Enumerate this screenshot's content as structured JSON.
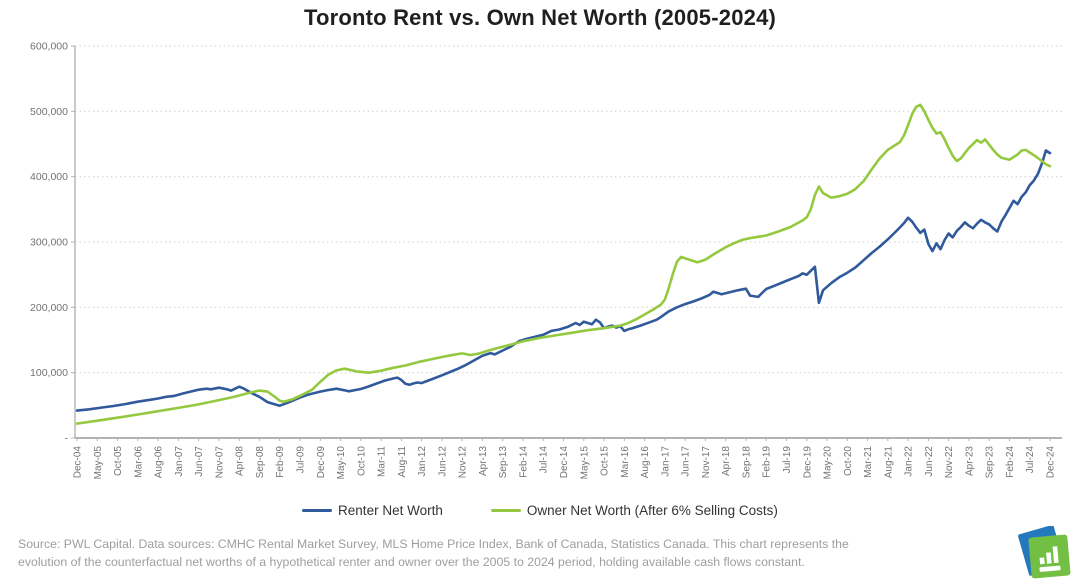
{
  "title": "Toronto Rent vs. Own Net Worth (2005-2024)",
  "footer": {
    "line1": "Source: PWL Capital. Data sources: CMHC Rental Market Survey, MLS Home Price Index, Bank of Canada, Statistics Canada. This chart represents the",
    "line2": "evolution of the counterfactual net worths of a hypothetical renter and owner over the 2005 to 2024 period, holding available cash flows constant."
  },
  "logo": {
    "name": "PWL Capital logo mark",
    "colors": {
      "blue": "#2478bd",
      "green": "#72bf44",
      "bars": "#ffffff"
    }
  },
  "chart_data": {
    "type": "line",
    "title": "Toronto Rent vs. Own Net Worth (2005-2024)",
    "grid": "horizontal dotted gridlines, white background",
    "legend_position": "bottom center",
    "x_axis": {
      "unit": "month (Dec-04 = 0)",
      "months_per_tick": 5,
      "total_months": 240,
      "tick_labels": [
        "Dec-04",
        "May-05",
        "Oct-05",
        "Mar-06",
        "Aug-06",
        "Jan-07",
        "Jun-07",
        "Nov-07",
        "Apr-08",
        "Sep-08",
        "Feb-09",
        "Jul-09",
        "Dec-09",
        "May-10",
        "Oct-10",
        "Mar-11",
        "Aug-11",
        "Jan-12",
        "Jun-12",
        "Nov-12",
        "Apr-13",
        "Sep-13",
        "Feb-14",
        "Jul-14",
        "Dec-14",
        "May-15",
        "Oct-15",
        "Mar-16",
        "Aug-16",
        "Jan-17",
        "Jun-17",
        "Nov-17",
        "Apr-18",
        "Sep-18",
        "Feb-19",
        "Jul-19",
        "Dec-19",
        "May-20",
        "Oct-20",
        "Mar-21",
        "Aug-21",
        "Jan-22",
        "Jun-22",
        "Nov-22",
        "Apr-23",
        "Sep-23",
        "Feb-24",
        "Jul-24",
        "Dec-24"
      ]
    },
    "y_axis": {
      "min": 0,
      "max": 600000,
      "ticks": [
        {
          "value": 600000,
          "label": "600,000"
        },
        {
          "value": 500000,
          "label": "500,000"
        },
        {
          "value": 400000,
          "label": "400,000"
        },
        {
          "value": 300000,
          "label": "300,000"
        },
        {
          "value": 200000,
          "label": "200,000"
        },
        {
          "value": 100000,
          "label": "100,000"
        },
        {
          "value": 0,
          "label": "-"
        }
      ]
    },
    "series": [
      {
        "name": "Renter Net Worth",
        "color": "#305a9c",
        "points": [
          [
            0,
            42000
          ],
          [
            3,
            44000
          ],
          [
            6,
            46500
          ],
          [
            9,
            49000
          ],
          [
            12,
            52000
          ],
          [
            15,
            55500
          ],
          [
            18,
            58500
          ],
          [
            20,
            60500
          ],
          [
            22,
            63000
          ],
          [
            24,
            64500
          ],
          [
            26,
            68000
          ],
          [
            28,
            71000
          ],
          [
            30,
            74000
          ],
          [
            32,
            75500
          ],
          [
            33,
            74500
          ],
          [
            35,
            77000
          ],
          [
            37,
            74500
          ],
          [
            38,
            72500
          ],
          [
            40,
            78500
          ],
          [
            41,
            76000
          ],
          [
            43,
            69000
          ],
          [
            45,
            63000
          ],
          [
            47,
            55000
          ],
          [
            50,
            49500
          ],
          [
            52,
            54000
          ],
          [
            55,
            62000
          ],
          [
            57,
            66500
          ],
          [
            60,
            71000
          ],
          [
            62,
            73500
          ],
          [
            64,
            75500
          ],
          [
            66,
            73000
          ],
          [
            67,
            71500
          ],
          [
            70,
            75000
          ],
          [
            72,
            79000
          ],
          [
            74,
            83500
          ],
          [
            76,
            88000
          ],
          [
            78,
            91000
          ],
          [
            79,
            92500
          ],
          [
            80,
            89000
          ],
          [
            81,
            83000
          ],
          [
            82,
            81500
          ],
          [
            83,
            83500
          ],
          [
            84,
            85000
          ],
          [
            85,
            84000
          ],
          [
            86,
            86500
          ],
          [
            88,
            91000
          ],
          [
            90,
            96000
          ],
          [
            92,
            101000
          ],
          [
            94,
            106000
          ],
          [
            96,
            112000
          ],
          [
            98,
            119000
          ],
          [
            100,
            126000
          ],
          [
            102,
            130000
          ],
          [
            103,
            128000
          ],
          [
            105,
            134000
          ],
          [
            107,
            140000
          ],
          [
            109,
            148000
          ],
          [
            111,
            152000
          ],
          [
            113,
            155000
          ],
          [
            115,
            158000
          ],
          [
            117,
            164000
          ],
          [
            119,
            166000
          ],
          [
            121,
            170000
          ],
          [
            123,
            176000
          ],
          [
            124,
            173000
          ],
          [
            125,
            178000
          ],
          [
            127,
            174000
          ],
          [
            128,
            181000
          ],
          [
            129,
            177000
          ],
          [
            130,
            168000
          ],
          [
            131,
            170500
          ],
          [
            132,
            172000
          ],
          [
            133,
            169000
          ],
          [
            134,
            171000
          ],
          [
            135,
            164000
          ],
          [
            136,
            166500
          ],
          [
            137,
            168000
          ],
          [
            139,
            172000
          ],
          [
            141,
            176500
          ],
          [
            143,
            181000
          ],
          [
            144,
            185000
          ],
          [
            146,
            194000
          ],
          [
            148,
            200000
          ],
          [
            150,
            205000
          ],
          [
            152,
            209000
          ],
          [
            154,
            213500
          ],
          [
            156,
            219000
          ],
          [
            157,
            224000
          ],
          [
            159,
            220000
          ],
          [
            161,
            223000
          ],
          [
            163,
            226000
          ],
          [
            165,
            228500
          ],
          [
            166,
            218000
          ],
          [
            168,
            216000
          ],
          [
            170,
            228000
          ],
          [
            172,
            233000
          ],
          [
            174,
            238000
          ],
          [
            176,
            243000
          ],
          [
            178,
            248000
          ],
          [
            179,
            252000
          ],
          [
            180,
            250000
          ],
          [
            182,
            262000
          ],
          [
            183,
            207000
          ],
          [
            184,
            226000
          ],
          [
            186,
            237000
          ],
          [
            188,
            246000
          ],
          [
            190,
            253000
          ],
          [
            192,
            261000
          ],
          [
            194,
            272000
          ],
          [
            196,
            283000
          ],
          [
            198,
            293000
          ],
          [
            200,
            304000
          ],
          [
            202,
            316000
          ],
          [
            204,
            329000
          ],
          [
            205,
            337000
          ],
          [
            206,
            331000
          ],
          [
            207,
            322000
          ],
          [
            208,
            314000
          ],
          [
            209,
            319000
          ],
          [
            210,
            297000
          ],
          [
            211,
            286000
          ],
          [
            212,
            298000
          ],
          [
            213,
            289000
          ],
          [
            214,
            303000
          ],
          [
            215,
            313000
          ],
          [
            216,
            307000
          ],
          [
            217,
            317000
          ],
          [
            218,
            323000
          ],
          [
            219,
            330000
          ],
          [
            220,
            325000
          ],
          [
            221,
            321000
          ],
          [
            222,
            328000
          ],
          [
            223,
            334000
          ],
          [
            224,
            330000
          ],
          [
            225,
            327000
          ],
          [
            226,
            321000
          ],
          [
            227,
            316000
          ],
          [
            228,
            331000
          ],
          [
            229,
            341000
          ],
          [
            230,
            352000
          ],
          [
            231,
            363000
          ],
          [
            232,
            358000
          ],
          [
            233,
            369000
          ],
          [
            234,
            376000
          ],
          [
            235,
            387000
          ],
          [
            236,
            394000
          ],
          [
            237,
            404000
          ],
          [
            238,
            420000
          ],
          [
            239,
            440000
          ],
          [
            240,
            436000
          ]
        ]
      },
      {
        "name": "Owner Net Worth (After 6% Selling Costs)",
        "color": "#94c93f",
        "points": [
          [
            0,
            22000
          ],
          [
            5,
            26500
          ],
          [
            10,
            31000
          ],
          [
            15,
            36000
          ],
          [
            20,
            41000
          ],
          [
            25,
            46000
          ],
          [
            30,
            51500
          ],
          [
            35,
            58000
          ],
          [
            38,
            62000
          ],
          [
            40,
            65000
          ],
          [
            43,
            70000
          ],
          [
            45,
            72500
          ],
          [
            47,
            71000
          ],
          [
            49,
            62000
          ],
          [
            50,
            57000
          ],
          [
            51,
            55500
          ],
          [
            53,
            59000
          ],
          [
            55,
            64500
          ],
          [
            58,
            74000
          ],
          [
            60,
            86000
          ],
          [
            62,
            97000
          ],
          [
            64,
            103500
          ],
          [
            66,
            106000
          ],
          [
            69,
            102000
          ],
          [
            72,
            100000
          ],
          [
            75,
            103000
          ],
          [
            78,
            107500
          ],
          [
            81,
            111000
          ],
          [
            84,
            116000
          ],
          [
            87,
            120000
          ],
          [
            90,
            124000
          ],
          [
            93,
            127500
          ],
          [
            95,
            129500
          ],
          [
            97,
            127000
          ],
          [
            99,
            129000
          ],
          [
            101,
            133000
          ],
          [
            104,
            138000
          ],
          [
            107,
            143000
          ],
          [
            110,
            148000
          ],
          [
            114,
            153000
          ],
          [
            118,
            157000
          ],
          [
            122,
            161000
          ],
          [
            126,
            165000
          ],
          [
            130,
            168000
          ],
          [
            134,
            172000
          ],
          [
            136,
            176000
          ],
          [
            138,
            182000
          ],
          [
            140,
            189000
          ],
          [
            142,
            196000
          ],
          [
            144,
            204000
          ],
          [
            145,
            212000
          ],
          [
            146,
            230000
          ],
          [
            147,
            252000
          ],
          [
            148,
            270000
          ],
          [
            149,
            277000
          ],
          [
            151,
            273000
          ],
          [
            153,
            269000
          ],
          [
            155,
            273000
          ],
          [
            157,
            281000
          ],
          [
            160,
            292000
          ],
          [
            162,
            298000
          ],
          [
            164,
            303000
          ],
          [
            166,
            306000
          ],
          [
            168,
            308000
          ],
          [
            170,
            310000
          ],
          [
            173,
            316000
          ],
          [
            176,
            323000
          ],
          [
            179,
            333000
          ],
          [
            180,
            338000
          ],
          [
            181,
            350000
          ],
          [
            182,
            372000
          ],
          [
            183,
            385000
          ],
          [
            184,
            375000
          ],
          [
            186,
            368000
          ],
          [
            188,
            370000
          ],
          [
            190,
            374000
          ],
          [
            192,
            381000
          ],
          [
            194,
            393000
          ],
          [
            196,
            411000
          ],
          [
            198,
            428000
          ],
          [
            200,
            441000
          ],
          [
            202,
            449000
          ],
          [
            203,
            453000
          ],
          [
            204,
            463000
          ],
          [
            205,
            479000
          ],
          [
            206,
            496000
          ],
          [
            207,
            507000
          ],
          [
            208,
            510000
          ],
          [
            209,
            500000
          ],
          [
            210,
            487000
          ],
          [
            211,
            475000
          ],
          [
            212,
            466000
          ],
          [
            213,
            468000
          ],
          [
            214,
            457000
          ],
          [
            215,
            444000
          ],
          [
            216,
            432000
          ],
          [
            217,
            424000
          ],
          [
            218,
            428000
          ],
          [
            219,
            436000
          ],
          [
            220,
            444000
          ],
          [
            221,
            450000
          ],
          [
            222,
            456000
          ],
          [
            223,
            452000
          ],
          [
            224,
            457000
          ],
          [
            225,
            449000
          ],
          [
            226,
            441000
          ],
          [
            227,
            434000
          ],
          [
            228,
            429000
          ],
          [
            230,
            426000
          ],
          [
            232,
            434000
          ],
          [
            233,
            440000
          ],
          [
            234,
            441000
          ],
          [
            235,
            437000
          ],
          [
            236,
            433000
          ],
          [
            238,
            424000
          ],
          [
            239,
            419000
          ],
          [
            240,
            416000
          ]
        ]
      }
    ]
  }
}
